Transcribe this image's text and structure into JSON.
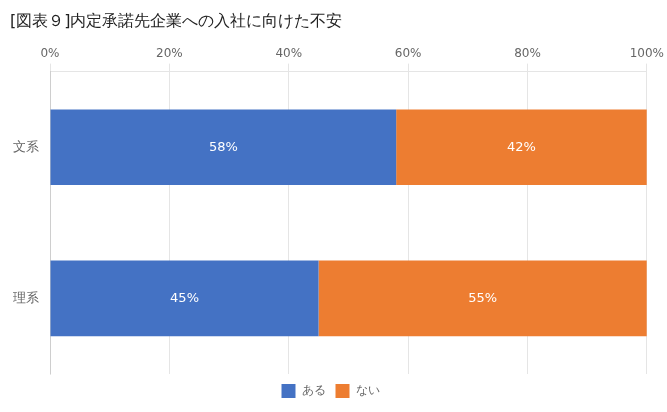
{
  "chart_data": {
    "type": "bar",
    "orientation": "horizontal",
    "stacked": true,
    "title": "[図表９]内定承諾先企業への入社に向けた不安",
    "categories": [
      "文系",
      "理系"
    ],
    "series": [
      {
        "name": "ある",
        "color": "#4472C4",
        "values": [
          58,
          45
        ],
        "value_labels": [
          "58%",
          "45%"
        ]
      },
      {
        "name": "ない",
        "color": "#ED7D31",
        "values": [
          42,
          55
        ],
        "value_labels": [
          "42%",
          "55%"
        ]
      }
    ],
    "xlim": [
      0,
      100
    ],
    "xticks": [
      {
        "value": 0,
        "label": "0%"
      },
      {
        "value": 20,
        "label": "20%"
      },
      {
        "value": 40,
        "label": "40%"
      },
      {
        "value": 60,
        "label": "60%"
      },
      {
        "value": 80,
        "label": "80%"
      },
      {
        "value": 100,
        "label": "100%"
      }
    ],
    "grid": "x",
    "legend": "bottom",
    "data_labels": true
  }
}
